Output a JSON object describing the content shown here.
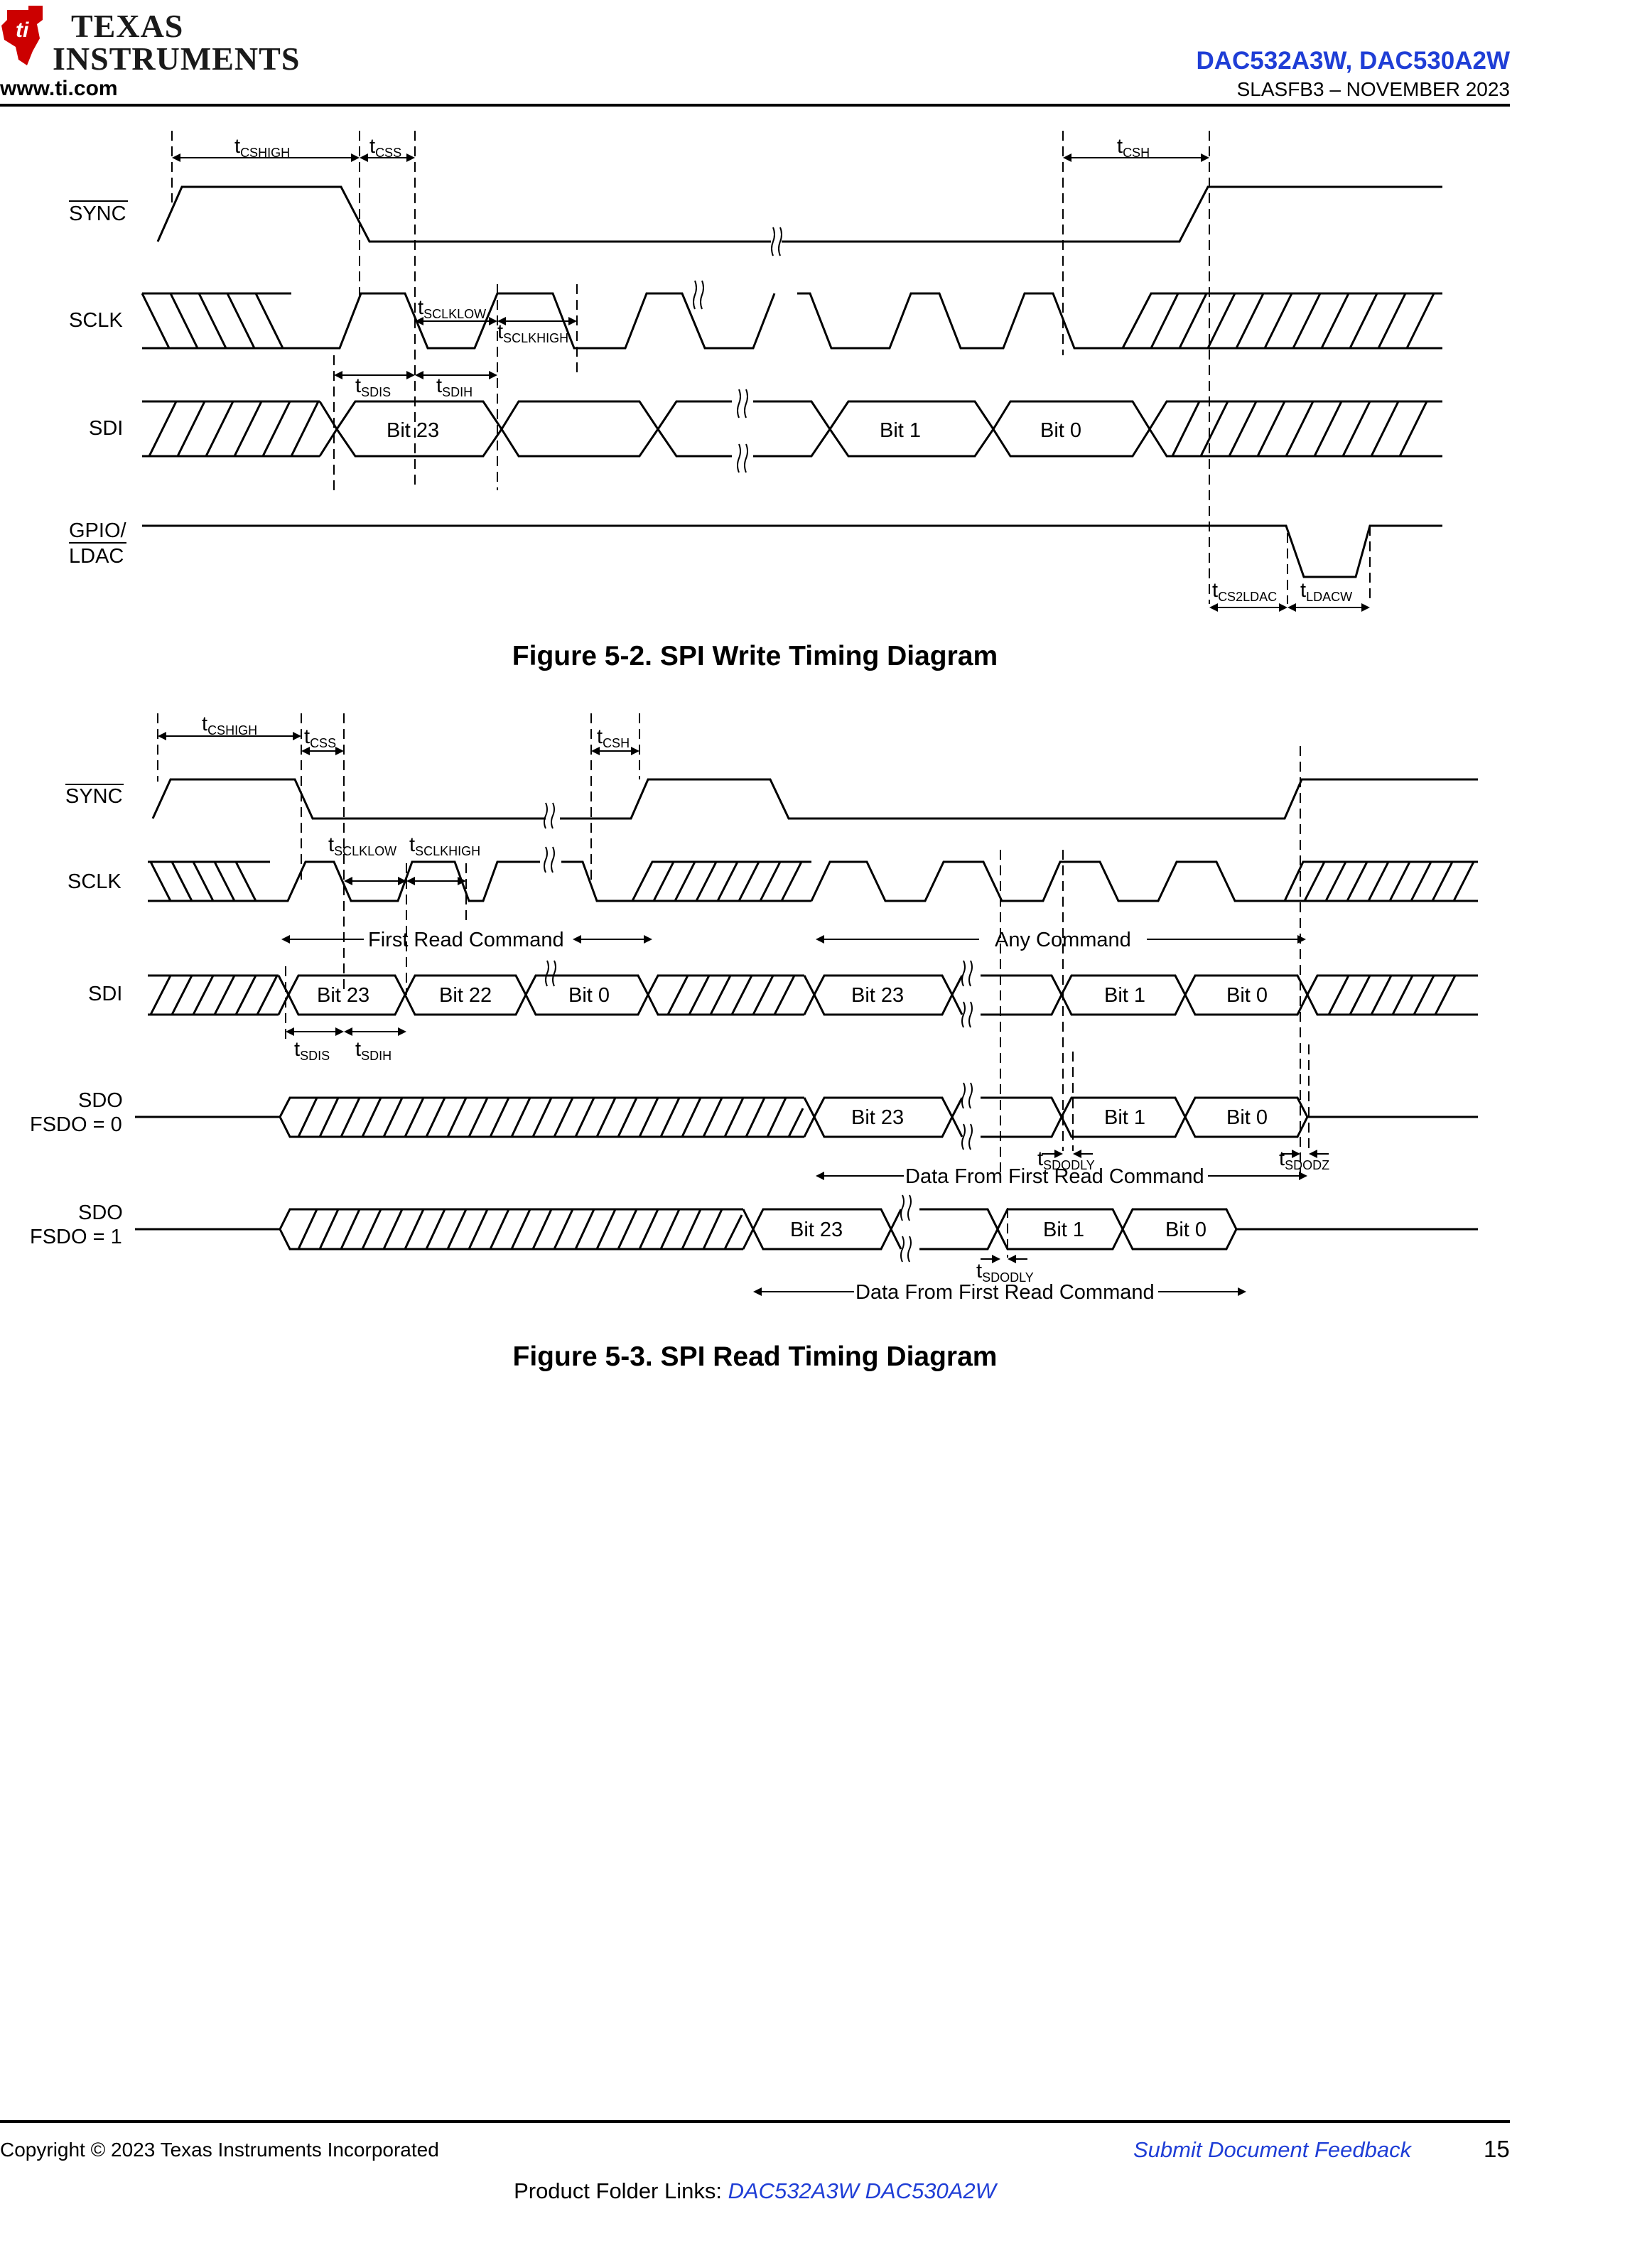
{
  "header": {
    "logo_text_line1": "TEXAS",
    "logo_text_line2": "INSTRUMENTS",
    "site": "www.ti.com",
    "doc_parts": "DAC532A3W, DAC530A2W",
    "doc_code": "SLASFB3 – NOVEMBER 2023"
  },
  "figure_write": {
    "caption": "Figure 5-2. SPI Write Timing Diagram",
    "signals": [
      "SYNC",
      "SCLK",
      "SDI",
      "GPIO/",
      "LDAC"
    ],
    "params": {
      "cshigh": "CSHIGH",
      "css": "CSS",
      "csh": "CSH",
      "sclklow": "SCLKLOW",
      "sclkhigh": "SCLKHIGH",
      "sdis": "SDIS",
      "sdih": "SDIH",
      "cs2ldac": "CS2LDAC",
      "ldacw": "LDACW"
    },
    "bits": {
      "bit23": "Bit 23",
      "bit1": "Bit 1",
      "bit0": "Bit 0"
    }
  },
  "figure_read": {
    "caption": "Figure 5-3. SPI Read Timing Diagram",
    "signals": [
      "SYNC",
      "SCLK",
      "SDI",
      "SDO",
      "FSDO = 0",
      "SDO",
      "FSDO = 1"
    ],
    "params": {
      "cshigh": "CSHIGH",
      "css": "CSS",
      "csh": "CSH",
      "sclklow": "SCLKLOW",
      "sclkhigh": "SCLKHIGH",
      "sdis": "SDIS",
      "sdih": "SDIH",
      "sdodly": "SDODLY",
      "sdodz": "SDODZ"
    },
    "bits": {
      "bit23": "Bit 23",
      "bit22": "Bit 22",
      "bit1": "Bit 1",
      "bit0": "Bit 0"
    },
    "labels": {
      "first_read": "First Read Command",
      "any_cmd": "Any Command",
      "data_first_read": "Data From First Read Command"
    }
  },
  "footer": {
    "copyright": "Copyright © 2023 Texas Instruments Incorporated",
    "feedback": "Submit Document Feedback",
    "page": "15",
    "folder_prefix": "Product Folder Links: ",
    "folder_link1": "DAC532A3W",
    "folder_link2": "DAC530A2W"
  },
  "colors": {
    "link": "#1f3ed6",
    "logo": "#cc0000"
  }
}
